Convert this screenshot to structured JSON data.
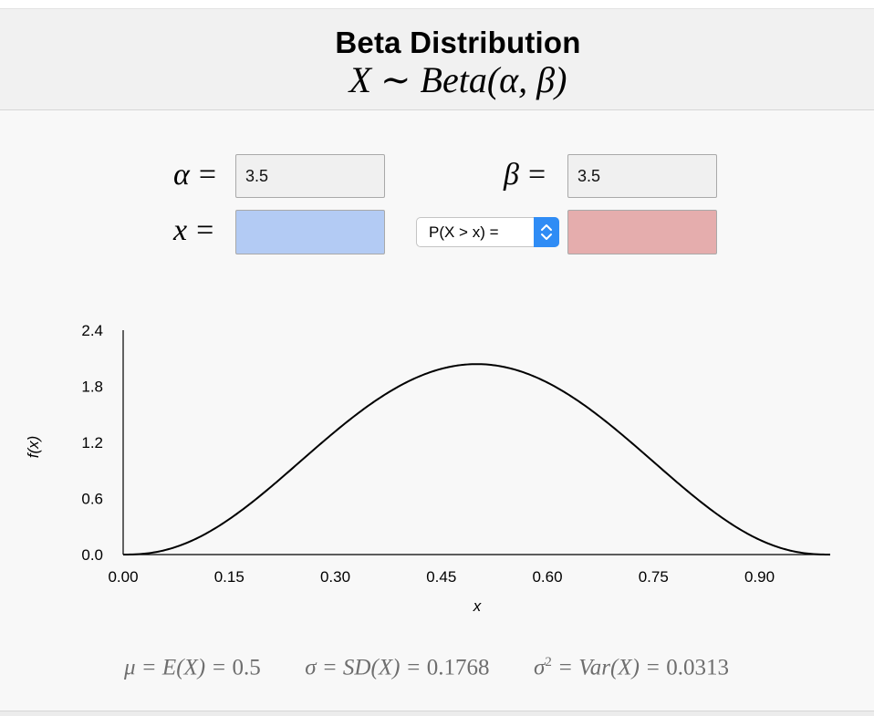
{
  "header": {
    "title": "Beta Distribution",
    "subtitle_var": "X",
    "subtitle_tilde": "∼",
    "subtitle_dist": "Beta",
    "subtitle_params": "(α, β)"
  },
  "inputs": {
    "alpha_label": "α",
    "alpha_value": "3.5",
    "beta_label": "β",
    "beta_value": "3.5",
    "x_label": "x",
    "x_value": "",
    "probability_value": "",
    "equals": "="
  },
  "probability_select": {
    "selected": "P(X > x) ="
  },
  "chart_data": {
    "type": "line",
    "distribution": "Beta",
    "alpha": 3.5,
    "beta": 3.5,
    "xlabel": "x",
    "ylabel": "f(x)",
    "xlim": [
      0,
      1
    ],
    "ylim": [
      0,
      2.4
    ],
    "x_ticks": [
      "0.00",
      "0.15",
      "0.30",
      "0.45",
      "0.60",
      "0.75",
      "0.90"
    ],
    "y_ticks": [
      "0.0",
      "0.6",
      "1.2",
      "1.8",
      "2.4"
    ],
    "line_color": "#000000",
    "peak": {
      "x": 0.5,
      "y": 2.03
    }
  },
  "stats": {
    "mean_lhs": "μ = E(X) =",
    "mean_value": "0.5",
    "sd_lhs": "σ = SD(X) =",
    "sd_value": "0.1768",
    "var_lhs_sym": "σ",
    "var_lhs_rest": " = Var(X) =",
    "var_value": "0.0313"
  }
}
